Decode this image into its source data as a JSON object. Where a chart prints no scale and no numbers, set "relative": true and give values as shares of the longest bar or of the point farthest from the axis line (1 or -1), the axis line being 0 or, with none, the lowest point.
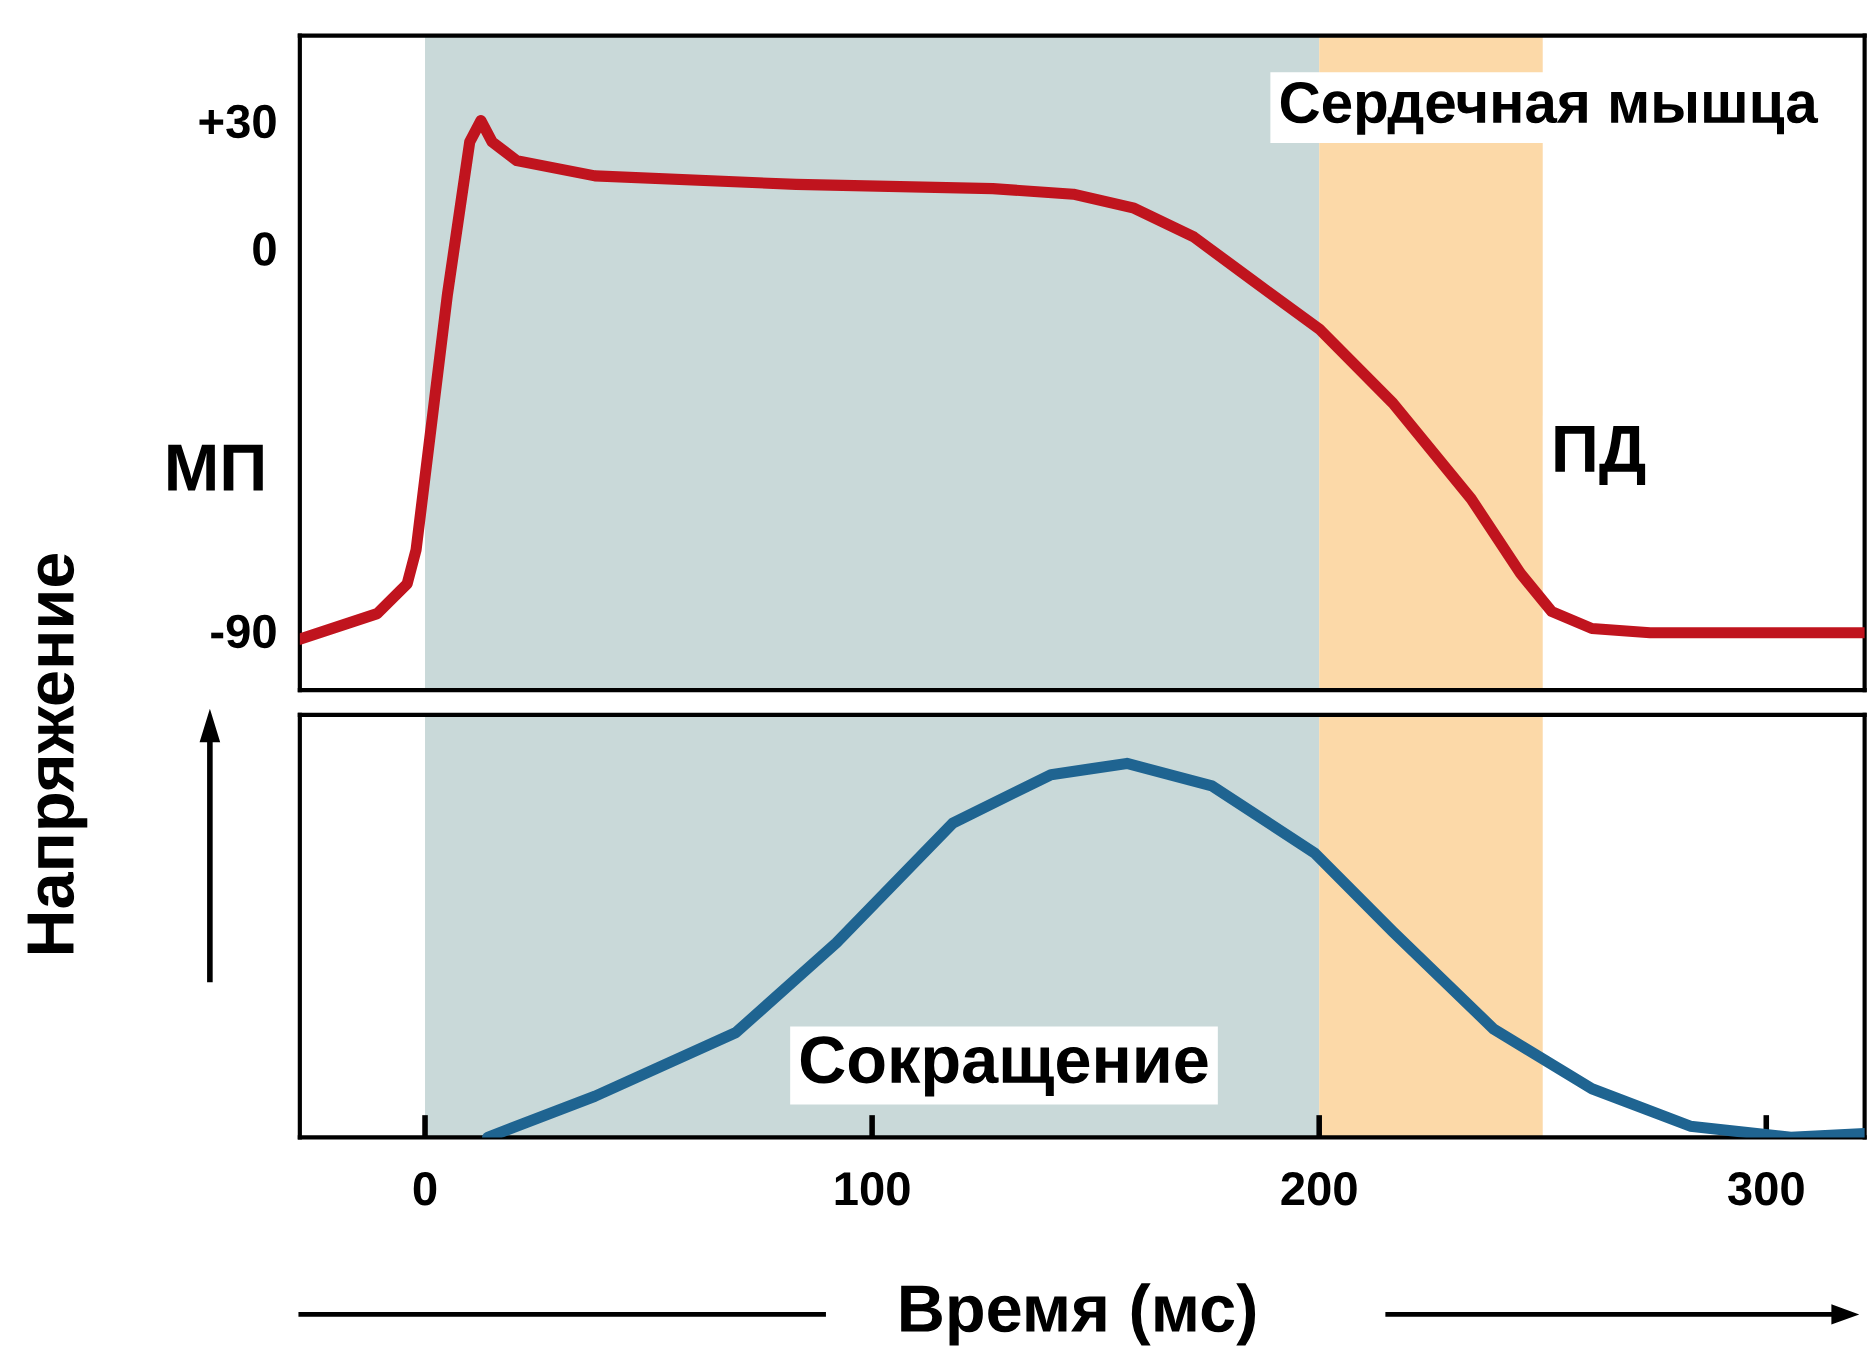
{
  "chart_data": [
    {
      "type": "line",
      "ylabel": "МП",
      "annotations": [
        "Сердечная мышца",
        "ПД"
      ],
      "xlim": [
        -28,
        322
      ],
      "ylim": [
        -104,
        50
      ],
      "yticks": [
        {
          "value": 30,
          "label": "+30"
        },
        0,
        -90
      ],
      "tick_labels": "y",
      "grid": false,
      "legend": false,
      "bands": [
        {
          "axis": "x",
          "from": 0,
          "to": 200,
          "color": "#c9d9d9"
        },
        {
          "axis": "x",
          "from": 200,
          "to": 250,
          "color": "#fcd9a8"
        }
      ],
      "series": [
        {
          "color": "#c0141e",
          "x": [
            -28,
            -10.7,
            -4,
            -2,
            5,
            10,
            12.5,
            15,
            20.5,
            38,
            83,
            127,
            145,
            158.6,
            172,
            185,
            200,
            216.5,
            234,
            245,
            252,
            261,
            274,
            322
          ],
          "values": [
            -92,
            -86,
            -79,
            -71,
            -11,
            25,
            30,
            25,
            20.6,
            17,
            15,
            14,
            12.7,
            9.4,
            2.6,
            -7.5,
            -19,
            -36.5,
            -59,
            -76.5,
            -85.5,
            -89.5,
            -90.5,
            -90.5
          ]
        }
      ]
    },
    {
      "type": "line",
      "relative": true,
      "xlabel": "Время (мс)",
      "ylabel": "Напряжение",
      "annotations": [
        "Сокращение"
      ],
      "xlim": [
        -28,
        322
      ],
      "xticks": [
        0,
        100,
        200,
        300
      ],
      "tick_labels": "x",
      "grid": false,
      "legend": false,
      "bands": [
        {
          "axis": "x",
          "from": 0,
          "to": 200,
          "color": "#c9d9d9"
        },
        {
          "axis": "x",
          "from": 200,
          "to": 250,
          "color": "#fcd9a8"
        }
      ],
      "series": [
        {
          "color": "#1f6491",
          "x": [
            14,
            38,
            69.5,
            92,
            118,
            140,
            157,
            176,
            199,
            216.5,
            239,
            261,
            283,
            305.5,
            322
          ],
          "values": [
            0,
            0.11,
            0.28,
            0.52,
            0.84,
            0.97,
            1,
            0.94,
            0.76,
            0.55,
            0.29,
            0.13,
            0.03,
            0,
            0.01
          ]
        }
      ]
    }
  ]
}
